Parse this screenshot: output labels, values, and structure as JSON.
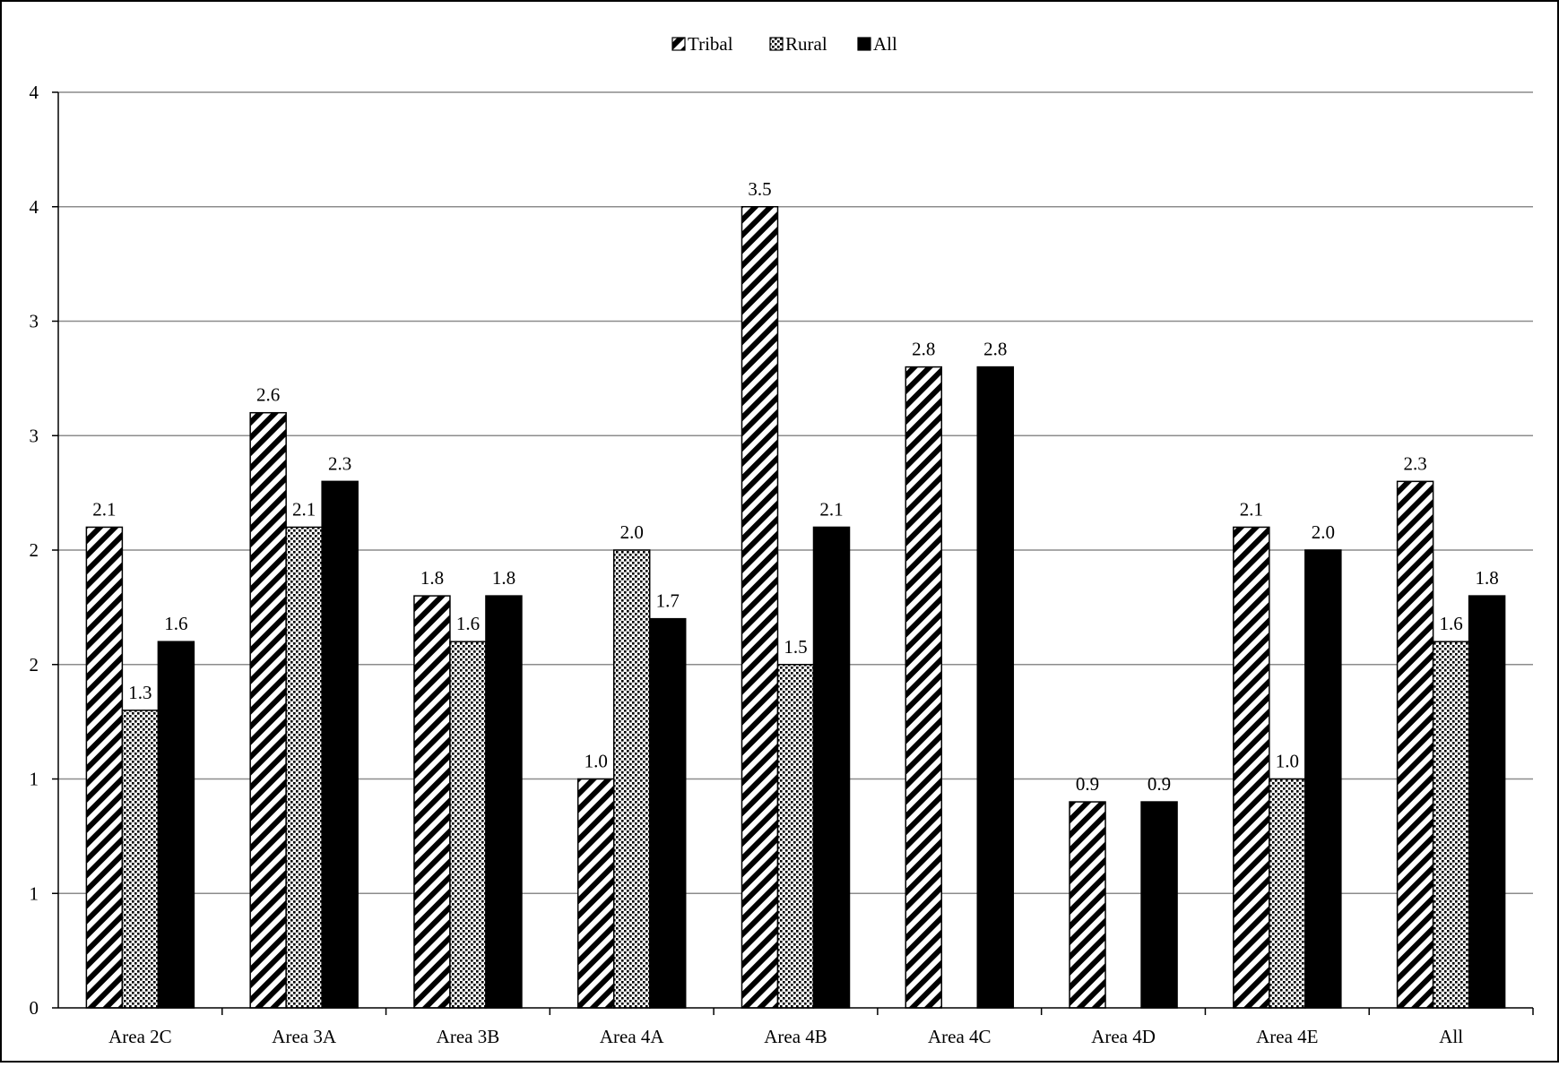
{
  "chart_data": {
    "type": "bar",
    "categories": [
      "Area 2C",
      "Area 3A",
      "Area 3B",
      "Area 4A",
      "Area 4B",
      "Area 4C",
      "Area 4D",
      "Area 4E",
      "All"
    ],
    "series": [
      {
        "name": "Tribal",
        "values": [
          2.1,
          2.6,
          1.8,
          1.0,
          3.5,
          2.8,
          0.9,
          2.1,
          2.3
        ],
        "labels": [
          "2.1",
          "2.6",
          "1.8",
          "1.0",
          "3.5",
          "2.8",
          "0.9",
          "2.1",
          "2.3"
        ],
        "pattern": "diagonal-hatch"
      },
      {
        "name": "Rural",
        "values": [
          1.3,
          2.1,
          1.6,
          2.0,
          1.5,
          null,
          null,
          1.0,
          1.6
        ],
        "labels": [
          "1.3",
          "2.1",
          "1.6",
          "2.0",
          "1.5",
          "",
          "",
          "1.0",
          "1.6"
        ],
        "pattern": "dotted"
      },
      {
        "name": "All",
        "values": [
          1.6,
          2.3,
          1.8,
          1.7,
          2.1,
          2.8,
          0.9,
          2.0,
          1.8
        ],
        "labels": [
          "1.6",
          "2.3",
          "1.8",
          "1.7",
          "2.1",
          "2.8",
          "0.9",
          "2.0",
          "1.8"
        ],
        "pattern": "solid"
      }
    ],
    "y_tick_labels": [
      "0",
      "1",
      "1",
      "2",
      "2",
      "3",
      "3",
      "4",
      "4"
    ],
    "ylim": [
      0,
      4
    ],
    "grid": true,
    "legend_position": "top-center",
    "colors": {
      "bar": "#000000",
      "grid": "#8c8c8c",
      "axis": "#000000",
      "frame": "#000000"
    }
  }
}
